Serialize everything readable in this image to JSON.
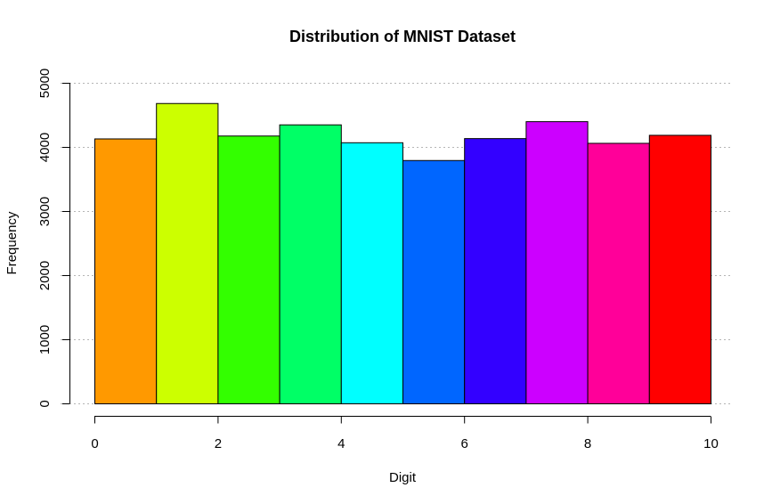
{
  "chart_data": {
    "type": "bar",
    "title": "Distribution of MNIST Dataset",
    "xlabel": "Digit",
    "ylabel": "Frequency",
    "xlim": [
      0,
      10
    ],
    "ylim": [
      0,
      5000
    ],
    "x_ticks": [
      "0",
      "2",
      "4",
      "6",
      "8",
      "10"
    ],
    "x_tick_values": [
      0,
      2,
      4,
      6,
      8,
      10
    ],
    "y_ticks": [
      "0",
      "1000",
      "2000",
      "3000",
      "4000",
      "5000"
    ],
    "y_tick_values": [
      0,
      1000,
      2000,
      3000,
      4000,
      5000
    ],
    "grid": "horizontal dotted",
    "bins": [
      {
        "start": 0,
        "end": 1,
        "value": 4132,
        "color": "#FF9900"
      },
      {
        "start": 1,
        "end": 2,
        "value": 4684,
        "color": "#CCFF00"
      },
      {
        "start": 2,
        "end": 3,
        "value": 4177,
        "color": "#33FF00"
      },
      {
        "start": 3,
        "end": 4,
        "value": 4351,
        "color": "#00FF66"
      },
      {
        "start": 4,
        "end": 5,
        "value": 4072,
        "color": "#00FFFF"
      },
      {
        "start": 5,
        "end": 6,
        "value": 3795,
        "color": "#0066FF"
      },
      {
        "start": 6,
        "end": 7,
        "value": 4137,
        "color": "#3300FF"
      },
      {
        "start": 7,
        "end": 8,
        "value": 4401,
        "color": "#CC00FF"
      },
      {
        "start": 8,
        "end": 9,
        "value": 4063,
        "color": "#FF0099"
      },
      {
        "start": 9,
        "end": 10,
        "value": 4188,
        "color": "#FF0000"
      }
    ]
  }
}
